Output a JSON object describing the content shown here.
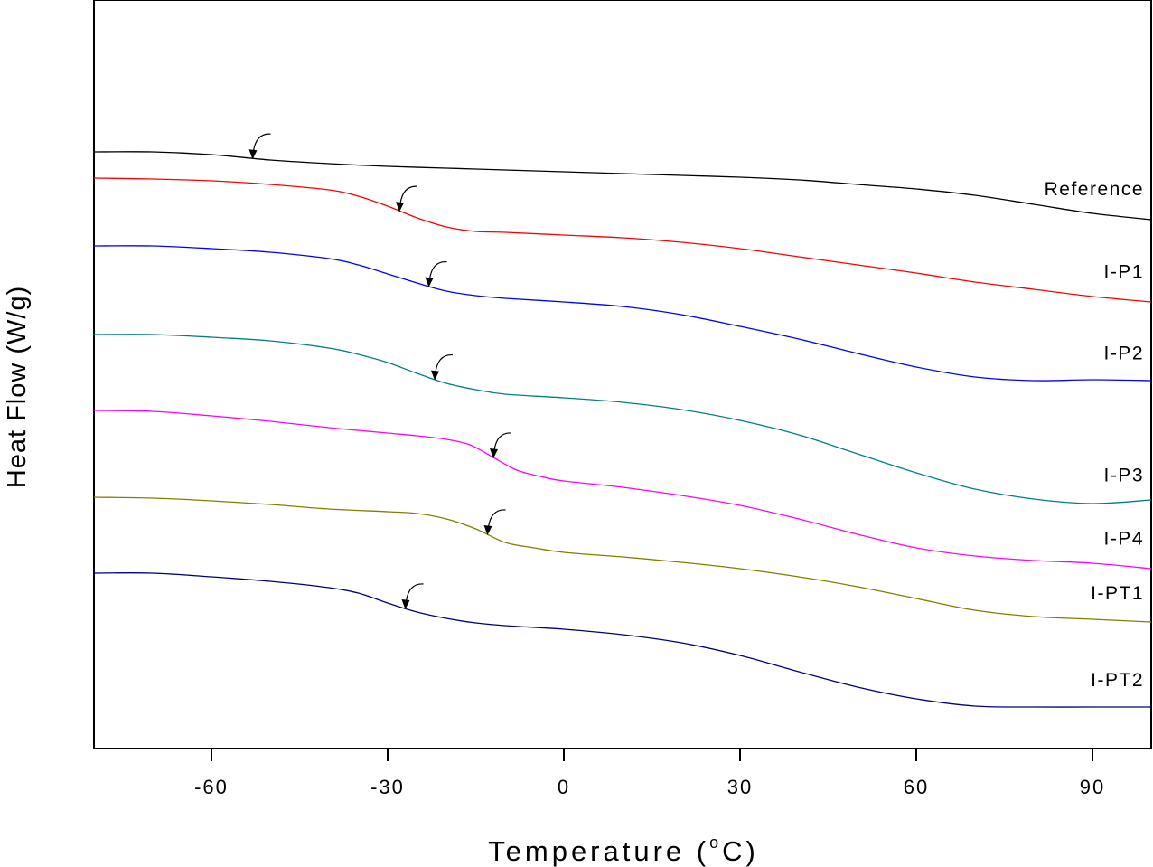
{
  "chart_data": {
    "type": "line",
    "xlabel_main": "Temperature (",
    "xlabel_sup": "o",
    "xlabel_unit": "C)",
    "ylabel": "Heat Flow (W/g)",
    "xlim": [
      -80,
      100
    ],
    "x_ticks": [
      -60,
      -30,
      0,
      30,
      60,
      90
    ],
    "x_tick_labels": [
      "-60",
      "-30",
      "0",
      "30",
      "60",
      "90"
    ],
    "y_ticks_shown": false,
    "grid": false,
    "series": [
      {
        "name": "Reference",
        "color": "#000000",
        "tg": -53,
        "points": [
          [
            -80,
            168
          ],
          [
            -70,
            168
          ],
          [
            -60,
            171
          ],
          [
            -50,
            177
          ],
          [
            -40,
            181
          ],
          [
            -30,
            184
          ],
          [
            -20,
            186
          ],
          [
            -10,
            188
          ],
          [
            0,
            190
          ],
          [
            10,
            192
          ],
          [
            20,
            194
          ],
          [
            30,
            196
          ],
          [
            40,
            199
          ],
          [
            50,
            204
          ],
          [
            60,
            209
          ],
          [
            70,
            216
          ],
          [
            80,
            226
          ],
          [
            90,
            236
          ],
          [
            100,
            243
          ]
        ]
      },
      {
        "name": "I-P1",
        "color": "#ff0000",
        "tg": -28,
        "points": [
          [
            -80,
            197
          ],
          [
            -70,
            198
          ],
          [
            -60,
            200
          ],
          [
            -50,
            204
          ],
          [
            -40,
            210
          ],
          [
            -35,
            217
          ],
          [
            -30,
            228
          ],
          [
            -25,
            241
          ],
          [
            -20,
            251
          ],
          [
            -15,
            256
          ],
          [
            -10,
            257
          ],
          [
            0,
            260
          ],
          [
            10,
            263
          ],
          [
            20,
            268
          ],
          [
            30,
            275
          ],
          [
            40,
            284
          ],
          [
            50,
            293
          ],
          [
            60,
            302
          ],
          [
            70,
            312
          ],
          [
            80,
            320
          ],
          [
            90,
            328
          ],
          [
            100,
            334
          ]
        ]
      },
      {
        "name": "I-P2",
        "color": "#0000ff",
        "tg": -23,
        "points": [
          [
            -80,
            272
          ],
          [
            -70,
            272
          ],
          [
            -60,
            275
          ],
          [
            -50,
            279
          ],
          [
            -40,
            286
          ],
          [
            -35,
            293
          ],
          [
            -30,
            303
          ],
          [
            -25,
            313
          ],
          [
            -20,
            322
          ],
          [
            -15,
            327
          ],
          [
            -10,
            330
          ],
          [
            0,
            334
          ],
          [
            10,
            339
          ],
          [
            20,
            348
          ],
          [
            30,
            361
          ],
          [
            40,
            375
          ],
          [
            50,
            391
          ],
          [
            60,
            406
          ],
          [
            70,
            417
          ],
          [
            80,
            421
          ],
          [
            90,
            420
          ],
          [
            100,
            421
          ]
        ]
      },
      {
        "name": "I-P3",
        "color": "#008080",
        "tg": -22,
        "points": [
          [
            -80,
            370
          ],
          [
            -70,
            370
          ],
          [
            -60,
            373
          ],
          [
            -50,
            377
          ],
          [
            -40,
            385
          ],
          [
            -35,
            392
          ],
          [
            -30,
            401
          ],
          [
            -25,
            413
          ],
          [
            -20,
            424
          ],
          [
            -15,
            431
          ],
          [
            -10,
            436
          ],
          [
            0,
            440
          ],
          [
            10,
            445
          ],
          [
            20,
            453
          ],
          [
            30,
            465
          ],
          [
            40,
            481
          ],
          [
            50,
            502
          ],
          [
            60,
            523
          ],
          [
            70,
            541
          ],
          [
            80,
            552
          ],
          [
            90,
            557
          ],
          [
            100,
            553
          ]
        ]
      },
      {
        "name": "I-P4",
        "color": "#ff00ff",
        "tg": -12,
        "points": [
          [
            -80,
            454
          ],
          [
            -70,
            455
          ],
          [
            -60,
            460
          ],
          [
            -50,
            466
          ],
          [
            -40,
            473
          ],
          [
            -30,
            479
          ],
          [
            -25,
            482
          ],
          [
            -20,
            486
          ],
          [
            -16,
            492
          ],
          [
            -12,
            506
          ],
          [
            -8,
            520
          ],
          [
            -4,
            527
          ],
          [
            0,
            532
          ],
          [
            10,
            539
          ],
          [
            20,
            548
          ],
          [
            30,
            559
          ],
          [
            40,
            574
          ],
          [
            50,
            591
          ],
          [
            60,
            606
          ],
          [
            70,
            615
          ],
          [
            80,
            620
          ],
          [
            90,
            623
          ],
          [
            100,
            629
          ]
        ]
      },
      {
        "name": "I-PT1",
        "color": "#808000",
        "tg": -13,
        "points": [
          [
            -80,
            550
          ],
          [
            -70,
            551
          ],
          [
            -60,
            554
          ],
          [
            -50,
            558
          ],
          [
            -40,
            563
          ],
          [
            -30,
            566
          ],
          [
            -25,
            568
          ],
          [
            -20,
            574
          ],
          [
            -15,
            585
          ],
          [
            -10,
            600
          ],
          [
            -5,
            606
          ],
          [
            0,
            611
          ],
          [
            10,
            616
          ],
          [
            20,
            622
          ],
          [
            30,
            629
          ],
          [
            40,
            638
          ],
          [
            50,
            649
          ],
          [
            60,
            662
          ],
          [
            70,
            675
          ],
          [
            80,
            682
          ],
          [
            90,
            685
          ],
          [
            100,
            688
          ]
        ]
      },
      {
        "name": "I-PT2",
        "color": "#000080",
        "tg": -27,
        "points": [
          [
            -80,
            634
          ],
          [
            -70,
            634
          ],
          [
            -60,
            638
          ],
          [
            -50,
            643
          ],
          [
            -40,
            650
          ],
          [
            -35,
            656
          ],
          [
            -30,
            667
          ],
          [
            -25,
            677
          ],
          [
            -20,
            684
          ],
          [
            -15,
            689
          ],
          [
            -10,
            692
          ],
          [
            0,
            696
          ],
          [
            10,
            702
          ],
          [
            20,
            711
          ],
          [
            30,
            725
          ],
          [
            40,
            743
          ],
          [
            50,
            760
          ],
          [
            60,
            773
          ],
          [
            70,
            781
          ],
          [
            80,
            782
          ],
          [
            90,
            782
          ],
          [
            100,
            782
          ]
        ]
      }
    ]
  }
}
